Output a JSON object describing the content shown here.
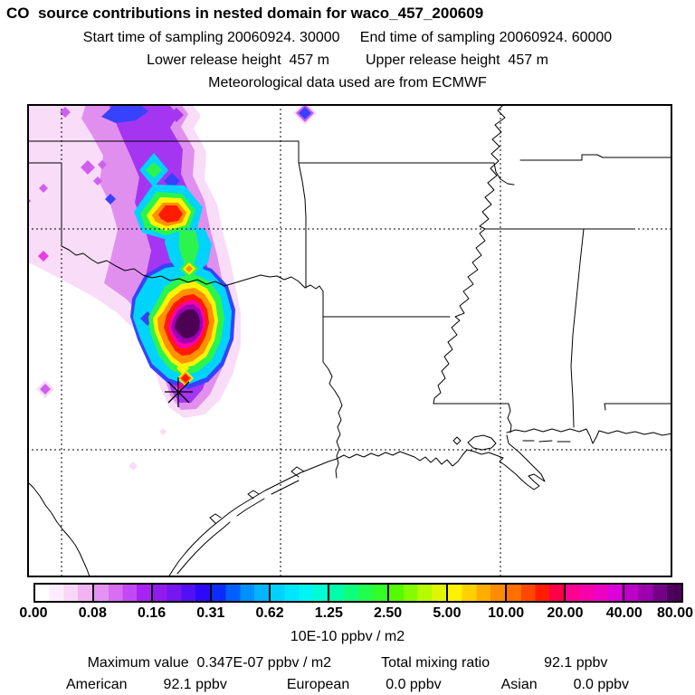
{
  "header": {
    "title": "CO  source contributions in nested domain for waco_457_200609",
    "sampling_line": "Start time of sampling 20060924. 30000     End time of sampling 20060924. 60000",
    "release_line": "Lower release height  457 m         Upper release height  457 m",
    "met_line": "Meteorological data used are from ECMWF"
  },
  "colorbar": {
    "tick_labels": [
      "0.00",
      "0.08",
      "0.16",
      "0.31",
      "0.62",
      "1.25",
      "2.50",
      "5.00",
      "10.00",
      "20.00",
      "40.00",
      "80.00"
    ],
    "units_label": "10E-10 ppbv / m2",
    "segments": [
      [
        "#ffffff",
        "#fdecfd",
        "#f8d7f8",
        "#f0b4f2"
      ],
      [
        "#e393f1",
        "#d76ef3",
        "#c449f4",
        "#a723f2"
      ],
      [
        "#921bee",
        "#7616f2",
        "#5310f6",
        "#2d09fa"
      ],
      [
        "#0b2cfd",
        "#0060ff",
        "#0090ff",
        "#00b4ff"
      ],
      [
        "#00d2ff",
        "#00e6ff",
        "#00f5f2",
        "#00fcd2"
      ],
      [
        "#00fda8",
        "#0eff7c",
        "#20ff4e",
        "#32fd26"
      ],
      [
        "#55fb00",
        "#86fc00",
        "#b6fb00",
        "#dff600"
      ],
      [
        "#fdf200",
        "#ffd000",
        "#ffae00",
        "#ff8c00"
      ],
      [
        "#ff6f00",
        "#ff4700",
        "#ff1c00",
        "#fe0048"
      ],
      [
        "#ff0090",
        "#f800ac",
        "#ec00c4",
        "#dc00d8"
      ],
      [
        "#bc00c8",
        "#9c00ac",
        "#750088",
        "#4c005c"
      ]
    ]
  },
  "footer": {
    "maximum_label": "Maximum value  0.347E-07 ppbv / m2",
    "total_label": "Total mixing ratio",
    "total_value": "92.1 ppbv",
    "regions": [
      {
        "label": "American",
        "value": "92.1 ppbv"
      },
      {
        "label": "European",
        "value": "0.0 ppbv"
      },
      {
        "label": "Asian",
        "value": "0.0 ppbv"
      }
    ]
  },
  "chart_data": {
    "type": "heatmap",
    "title": "CO  source contributions in nested domain for waco_457_200609",
    "subtitle": [
      "Start time of sampling 20060924. 30000",
      "End time of sampling 20060924. 60000",
      "Lower release height  457 m",
      "Upper release height  457 m",
      "Meteorological data used are from ECMWF"
    ],
    "units": "10E-10 ppbv / m2",
    "levels": [
      0.0,
      0.08,
      0.16,
      0.31,
      0.62,
      1.25,
      2.5,
      5.0,
      10.0,
      20.0,
      40.0,
      80.0
    ],
    "level_colors": [
      "#f8dcf8",
      "#d05ff0",
      "#a436f2",
      "#3742fa",
      "#00d4fe",
      "#2cf44c",
      "#dff600",
      "#ffd000",
      "#ff1c00",
      "#ff00a6",
      "#9e00b4",
      "#4d0155"
    ],
    "legend_position": "bottom",
    "grid": "dashed lat/lon graticule",
    "map_region": "South-central United States (Texas, Oklahoma, Arkansas, Louisiana, Mississippi, Gulf coast)",
    "plume": "CO source-contribution plume extending north from release point in central Texas across the Red River into Oklahoma; maximum (dark core, >80 units) just north of the release point",
    "source_marker": {
      "symbol": "asterisk",
      "location": "release point, central Texas (waco)"
    },
    "stats": {
      "maximum_value": "0.347E-07 ppbv / m2",
      "total_mixing_ratio": "92.1 ppbv",
      "american": "92.1 ppbv",
      "european": "0.0 ppbv",
      "asian": "0.0 ppbv"
    }
  }
}
